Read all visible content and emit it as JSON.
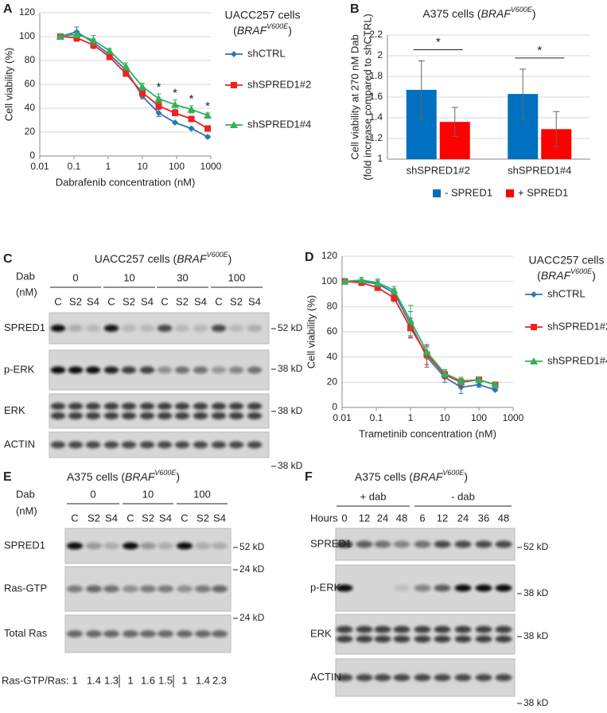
{
  "panel_letters": [
    "A",
    "B",
    "C",
    "D",
    "E",
    "F"
  ],
  "chart_data": [
    {
      "type": "line",
      "xscale": "log",
      "xlabel": "Dabrafenib concentration (nM)",
      "ylabel": "Cell viability (%)",
      "x": [
        0.04,
        0.12,
        0.37,
        1.1,
        3.3,
        10,
        30,
        90,
        270,
        810
      ],
      "xlim": [
        0.01,
        1000
      ],
      "xticks": [
        0.01,
        0.1,
        1,
        10,
        100,
        1000
      ],
      "ylim": [
        0,
        120
      ],
      "yticks": [
        0,
        20,
        40,
        60,
        80,
        100,
        120
      ],
      "grid": true,
      "legend_title": {
        "line1": "UACC257 cells",
        "line2": [
          "(",
          "BRAF",
          "V600E",
          ")"
        ]
      },
      "series": [
        {
          "name": "shCTRL",
          "color": "#2e75b6",
          "marker": "diamond",
          "values": [
            100,
            104,
            95,
            85,
            72,
            50,
            36,
            28,
            23,
            16
          ],
          "errors": [
            2,
            4,
            3,
            2,
            2,
            2,
            3,
            1,
            1,
            1
          ]
        },
        {
          "name": "shSPRED1#2",
          "color": "#ee2222",
          "marker": "square",
          "values": [
            100,
            99,
            93,
            83,
            69,
            53,
            42,
            36,
            31,
            23
          ],
          "errors": [
            2,
            3,
            3,
            2,
            2,
            3,
            3,
            2,
            2,
            2
          ]
        },
        {
          "name": "shSPRED1#4",
          "color": "#33b05a",
          "marker": "triangle",
          "values": [
            100,
            102,
            97,
            88,
            75,
            58,
            48,
            43,
            39,
            34
          ],
          "errors": [
            2,
            3,
            4,
            2,
            3,
            3,
            4,
            4,
            3,
            2
          ]
        }
      ],
      "annotations": [
        {
          "text": "*",
          "x": 30
        },
        {
          "text": "*",
          "x": 90
        },
        {
          "text": "*",
          "x": 270
        },
        {
          "text": "*",
          "x": 810
        }
      ]
    },
    {
      "type": "bar",
      "title": [
        "A375 cells (",
        "BRAF",
        "V600E",
        ")"
      ],
      "ylabel": [
        "Cell viability at 270 nM Dab",
        "(fold increase compared to shCTRL)"
      ],
      "categories": [
        "shSPRED1#2",
        "shSPRED1#4"
      ],
      "ylim": [
        1,
        2.2
      ],
      "yticks": [
        1,
        1.2,
        1.4,
        1.6,
        1.8,
        2,
        2.2
      ],
      "grid": true,
      "series": [
        {
          "name": "- SPRED1",
          "color": "#0070c0",
          "values": [
            1.67,
            1.63
          ],
          "errors": [
            0.28,
            0.24
          ]
        },
        {
          "name": "+ SPRED1",
          "color": "#ff0000",
          "values": [
            1.36,
            1.29
          ],
          "errors": [
            0.14,
            0.17
          ]
        }
      ],
      "annotations": [
        "*",
        "*"
      ]
    },
    {
      "type": "line",
      "xscale": "log",
      "xlabel": "Trametinib concentration (nM)",
      "ylabel": "Cell viability (%)",
      "x": [
        0.012,
        0.037,
        0.11,
        0.33,
        1,
        3,
        10,
        30,
        100,
        300
      ],
      "xlim": [
        0.01,
        1000
      ],
      "xticks": [
        0.01,
        0.1,
        1,
        10,
        100,
        1000
      ],
      "ylim": [
        0,
        120
      ],
      "yticks": [
        0,
        20,
        40,
        60,
        80,
        100,
        120
      ],
      "grid": true,
      "legend_title": {
        "line1": "UACC257 cells",
        "line2": [
          "(",
          "BRAF",
          "V600E",
          ")"
        ]
      },
      "series": [
        {
          "name": "shCTRL",
          "color": "#2e75b6",
          "marker": "diamond",
          "values": [
            100,
            100,
            98,
            91,
            66,
            40,
            24,
            16,
            18,
            14
          ],
          "errors": [
            2,
            3,
            3,
            3,
            10,
            8,
            4,
            5,
            2,
            1
          ]
        },
        {
          "name": "shSPRED1#2",
          "color": "#ee2222",
          "marker": "square",
          "values": [
            100,
            99,
            95,
            87,
            63,
            42,
            26,
            20,
            22,
            18
          ],
          "errors": [
            2,
            2,
            2,
            3,
            8,
            8,
            3,
            3,
            1,
            1
          ]
        },
        {
          "name": "shSPRED1#4",
          "color": "#33b05a",
          "marker": "triangle",
          "values": [
            100,
            101,
            99,
            93,
            69,
            44,
            27,
            21,
            22,
            18
          ],
          "errors": [
            1,
            2,
            3,
            3,
            12,
            5,
            3,
            3,
            2,
            2
          ]
        }
      ]
    }
  ],
  "blots": [
    {
      "title": [
        "UACC257 cells (",
        "BRAF",
        "V600E",
        ")"
      ],
      "dose_label": [
        "Dab",
        "(nM)"
      ],
      "groups": [
        {
          "label": 0,
          "lanes": [
            "C",
            "S2",
            "S4"
          ]
        },
        {
          "label": 10,
          "lanes": [
            "C",
            "S2",
            "S4"
          ]
        },
        {
          "label": 30,
          "lanes": [
            "C",
            "S2",
            "S4"
          ]
        },
        {
          "label": 100,
          "lanes": [
            "C",
            "S2",
            "S4"
          ]
        }
      ],
      "rows": [
        {
          "label": "SPRED1",
          "marker": "52 kD"
        },
        {
          "label": "p-ERK",
          "marker": "38 kD"
        },
        {
          "label": "ERK",
          "marker": "38 kD"
        },
        {
          "label": "ACTIN",
          "marker": "38 kD"
        }
      ]
    },
    {
      "title": [
        "A375 cells (",
        "BRAF",
        "V600E",
        ")"
      ],
      "dose_label": [
        "Dab",
        "(nM)"
      ],
      "groups": [
        {
          "label": 0,
          "lanes": [
            "C",
            "S2",
            "S4"
          ]
        },
        {
          "label": 10,
          "lanes": [
            "C",
            "S2",
            "S4"
          ]
        },
        {
          "label": 100,
          "lanes": [
            "C",
            "S2",
            "S4"
          ]
        }
      ],
      "rows": [
        {
          "label": "SPRED1",
          "marker": "52 kD"
        },
        {
          "label": "Ras-GTP",
          "marker": "24 kD"
        },
        {
          "label": "Total Ras",
          "marker": "24 kD"
        }
      ],
      "ratio": {
        "label": "Ras-GTP/Ras:",
        "values": [
          [
            1,
            1.4,
            1.3
          ],
          [
            1,
            1.6,
            1.5
          ],
          [
            1,
            1.4,
            2.3
          ]
        ]
      }
    },
    {
      "title": [
        "A375 cells (",
        "BRAF",
        "V600E",
        ")"
      ],
      "lane_header": "Hours",
      "groups": [
        {
          "label": "+ dab",
          "hours": [
            0,
            12,
            24,
            48
          ]
        },
        {
          "label": "- dab",
          "hours": [
            6,
            12,
            24,
            36,
            48
          ]
        }
      ],
      "rows": [
        {
          "label": "SPRED1",
          "marker": "52 kD"
        },
        {
          "label": "p-ERK",
          "marker": "38 kD"
        },
        {
          "label": "ERK",
          "marker": "38 kD"
        },
        {
          "label": "ACTIN",
          "marker": "38 kD"
        }
      ]
    }
  ]
}
